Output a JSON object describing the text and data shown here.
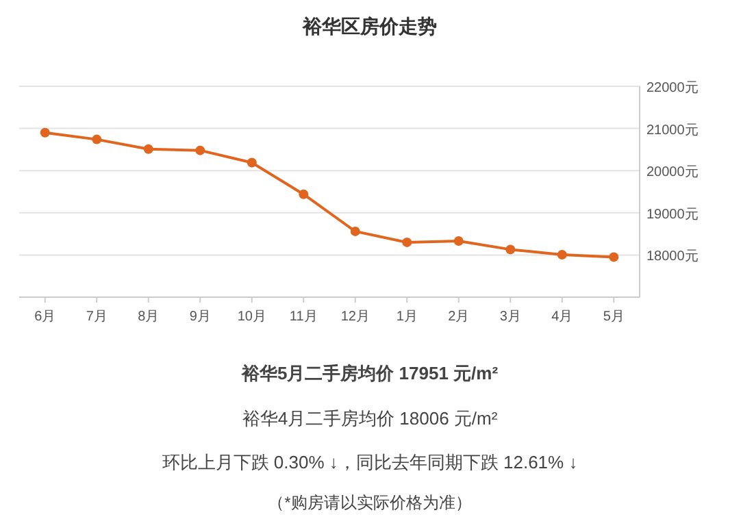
{
  "chart_data": {
    "type": "line",
    "title": "裕华区房价走势",
    "categories": [
      "6月",
      "7月",
      "8月",
      "9月",
      "10月",
      "11月",
      "12月",
      "1月",
      "2月",
      "3月",
      "4月",
      "5月"
    ],
    "series": [
      {
        "color": "#e0661f",
        "values": [
          20900,
          20740,
          20510,
          20480,
          20190,
          19440,
          18560,
          18300,
          18330,
          18130,
          18006,
          17951
        ]
      }
    ],
    "ylim": [
      17000,
      22000
    ],
    "yticks": [
      {
        "value": 18000,
        "label": "18000元"
      },
      {
        "value": 19000,
        "label": "19000元"
      },
      {
        "value": 20000,
        "label": "20000元"
      },
      {
        "value": 21000,
        "label": "21000元"
      },
      {
        "value": 22000,
        "label": "22000元"
      }
    ],
    "grid": "y",
    "marker": "circle",
    "line_style": "solid",
    "annotations": [
      "**裕华5月二手房均价 17951 元/m²**",
      "裕华4月二手房均价 18006 元/m²",
      "环比上月下跌 0.30% ↓，同比去年同期下跌 12.61% ↓",
      "（*购房请以实际价格为准）"
    ]
  }
}
